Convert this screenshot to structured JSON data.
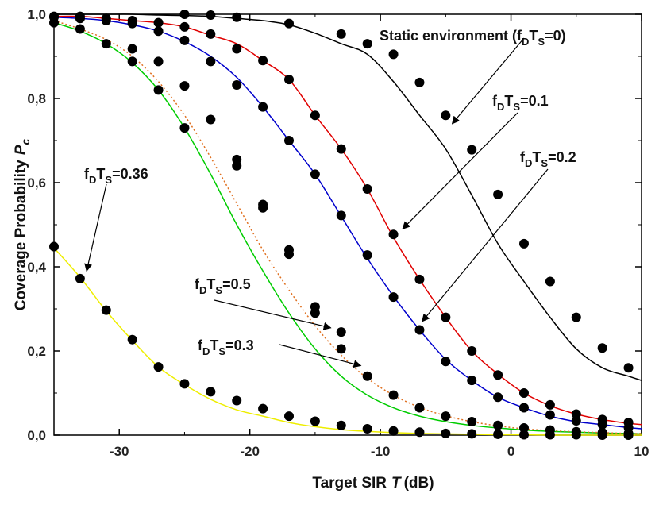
{
  "chart_data": {
    "type": "line",
    "title": "",
    "xlabel": "Target SIR",
    "xlabel_var": "T",
    "xlabel_unit": "(dB)",
    "ylabel": "Coverage Probability",
    "ylabel_var": "P",
    "ylabel_var_sub": "c",
    "xlim": [
      -35,
      10
    ],
    "ylim": [
      0.0,
      1.0
    ],
    "x_ticks": [
      -30,
      -20,
      -10,
      0,
      10
    ],
    "x_tick_labels": [
      "-30",
      "-20",
      "-10",
      "0",
      "10"
    ],
    "y_ticks": [
      0.0,
      0.2,
      0.4,
      0.6,
      0.8,
      1.0
    ],
    "y_tick_labels": [
      "0,0",
      "0,2",
      "0,4",
      "0,6",
      "0,8",
      "1,0"
    ],
    "grid": false,
    "legend": "none",
    "series": [
      {
        "color": "#000000",
        "dash": false,
        "x": [
          -35,
          -33,
          -31,
          -29,
          -27,
          -25,
          -23,
          -21,
          -19,
          -17,
          -15,
          -13,
          -11,
          -9,
          -7,
          -5,
          -3,
          -1,
          1,
          3,
          5,
          7,
          9,
          10
        ],
        "y": [
          1.0,
          1.0,
          1.0,
          1.0,
          0.998,
          0.997,
          0.995,
          0.99,
          0.985,
          0.975,
          0.955,
          0.93,
          0.905,
          0.84,
          0.76,
          0.68,
          0.57,
          0.455,
          0.365,
          0.28,
          0.205,
          0.16,
          0.14,
          0.13
        ],
        "markers_x": [
          -25,
          -23,
          -21,
          -17,
          -13,
          -11,
          -9,
          -7,
          -5,
          -3,
          -1,
          1,
          3,
          5,
          7,
          9
        ],
        "markers_y": [
          1.0,
          0.998,
          0.993,
          0.978,
          0.953,
          0.93,
          0.905,
          0.838,
          0.76,
          0.678,
          0.572,
          0.455,
          0.365,
          0.28,
          0.207,
          0.16
        ]
      },
      {
        "color": "#e00000",
        "dash": false,
        "x": [
          -35,
          -33,
          -31,
          -29,
          -27,
          -25,
          -23,
          -21,
          -19,
          -17,
          -15,
          -13,
          -11,
          -9,
          -7,
          -5,
          -3,
          -1,
          1,
          3,
          5,
          7,
          9,
          10
        ],
        "y": [
          0.995,
          0.995,
          0.99,
          0.985,
          0.98,
          0.97,
          0.95,
          0.93,
          0.89,
          0.845,
          0.76,
          0.68,
          0.585,
          0.47,
          0.37,
          0.28,
          0.2,
          0.145,
          0.1,
          0.07,
          0.05,
          0.037,
          0.028,
          0.025
        ],
        "markers_x": [
          -35,
          -33,
          -31,
          -29,
          -27,
          -25,
          -23,
          -21,
          -19,
          -17,
          -15,
          -13,
          -11,
          -9,
          -7,
          -5,
          -3,
          -1,
          1,
          3,
          5,
          7,
          9
        ],
        "markers_y": [
          0.995,
          0.995,
          0.99,
          0.985,
          0.98,
          0.97,
          0.953,
          0.918,
          0.89,
          0.845,
          0.76,
          0.68,
          0.585,
          0.477,
          0.37,
          0.28,
          0.2,
          0.143,
          0.1,
          0.072,
          0.05,
          0.037,
          0.03
        ]
      },
      {
        "color": "#0000cc",
        "dash": false,
        "x": [
          -35,
          -33,
          -31,
          -29,
          -27,
          -25,
          -23,
          -21,
          -19,
          -17,
          -15,
          -13,
          -11,
          -9,
          -7,
          -5,
          -3,
          -1,
          1,
          3,
          5,
          7,
          9,
          10
        ],
        "y": [
          0.993,
          0.99,
          0.985,
          0.975,
          0.96,
          0.935,
          0.9,
          0.85,
          0.78,
          0.7,
          0.62,
          0.52,
          0.42,
          0.33,
          0.25,
          0.18,
          0.13,
          0.09,
          0.065,
          0.045,
          0.032,
          0.025,
          0.018,
          0.015
        ],
        "markers_x": [
          -35,
          -33,
          -31,
          -29,
          -27,
          -25,
          -23,
          -21,
          -19,
          -17,
          -15,
          -13,
          -11,
          -9,
          -7,
          -5,
          -3,
          -1,
          1,
          3,
          5,
          7,
          9
        ],
        "markers_y": [
          0.993,
          0.99,
          0.985,
          0.978,
          0.96,
          0.938,
          0.888,
          0.832,
          0.78,
          0.7,
          0.62,
          0.522,
          0.428,
          0.328,
          0.25,
          0.175,
          0.13,
          0.09,
          0.065,
          0.048,
          0.034,
          0.025,
          0.018
        ]
      },
      {
        "color": "#00cc00",
        "dash": false,
        "x": [
          -35,
          -33,
          -31,
          -29,
          -27,
          -25,
          -23,
          -21,
          -19,
          -17,
          -15,
          -13,
          -11,
          -9,
          -7,
          -5,
          -3,
          -1,
          1,
          3,
          5,
          7,
          9,
          10
        ],
        "y": [
          0.98,
          0.96,
          0.93,
          0.885,
          0.82,
          0.73,
          0.62,
          0.5,
          0.39,
          0.29,
          0.205,
          0.14,
          0.095,
          0.065,
          0.045,
          0.032,
          0.023,
          0.017,
          0.012,
          0.009,
          0.007,
          0.005,
          0.004,
          0.003
        ],
        "markers_x": [
          -35,
          -31,
          -29,
          -27,
          -25,
          -23,
          -21,
          -19,
          -17,
          -15,
          -13,
          -11,
          -9,
          -7,
          -5,
          -3,
          -1,
          1,
          3,
          5,
          7,
          9
        ],
        "markers_y": [
          0.98,
          0.93,
          0.888,
          0.82,
          0.73,
          0.75,
          0.64,
          0.54,
          0.43,
          0.29,
          0.205,
          0.14,
          0.095,
          0.065,
          0.045,
          0.032,
          0.023,
          0.017,
          0.012,
          0.008,
          0.006,
          0.004
        ]
      },
      {
        "color": "#e07020",
        "dash": true,
        "x": [
          -35,
          -33,
          -31,
          -29,
          -27,
          -25,
          -23,
          -21,
          -19,
          -17,
          -15,
          -13,
          -11,
          -9,
          -7,
          -5,
          -3,
          -1,
          1,
          3,
          5,
          7,
          9,
          10
        ],
        "y": [
          0.985,
          0.965,
          0.94,
          0.9,
          0.84,
          0.76,
          0.66,
          0.55,
          0.44,
          0.345,
          0.26,
          0.19,
          0.135,
          0.095,
          0.066,
          0.046,
          0.032,
          0.022,
          0.015,
          0.011,
          0.008,
          0.006,
          0.004,
          0.004
        ],
        "markers_x": [
          -33,
          -29,
          -27,
          -25,
          -21,
          -19,
          -17,
          -15,
          -13
        ],
        "markers_y": [
          0.965,
          0.918,
          0.888,
          0.83,
          0.655,
          0.548,
          0.44,
          0.305,
          0.245
        ]
      },
      {
        "color": "#eeee00",
        "dash": false,
        "x": [
          -35,
          -33,
          -31,
          -29,
          -27,
          -25,
          -23,
          -21,
          -19,
          -17,
          -15,
          -13,
          -11,
          -9,
          -7,
          -5,
          -3,
          -1,
          1,
          3,
          5,
          7,
          9,
          10
        ],
        "y": [
          0.445,
          0.375,
          0.295,
          0.225,
          0.162,
          0.12,
          0.085,
          0.06,
          0.045,
          0.03,
          0.02,
          0.013,
          0.009,
          0.006,
          0.004,
          0.003,
          0.002,
          0.001,
          0.001,
          0.0,
          0.0,
          0.0,
          0.0,
          0.0
        ],
        "markers_x": [
          -35,
          -33,
          -31,
          -29,
          -27,
          -25,
          -23,
          -21,
          -19,
          -17,
          -15,
          -13,
          -11,
          -9,
          -7,
          -5,
          -3,
          -1,
          1,
          3,
          5,
          7,
          9
        ],
        "markers_y": [
          0.448,
          0.372,
          0.297,
          0.227,
          0.162,
          0.122,
          0.103,
          0.082,
          0.063,
          0.045,
          0.033,
          0.023,
          0.015,
          0.01,
          0.007,
          0.004,
          0.003,
          0.002,
          0.001,
          0.001,
          0.001,
          0.0,
          0.0
        ]
      }
    ],
    "annotations": [
      {
        "parts": [
          {
            "t": "Static environment (f"
          },
          {
            "t": "D",
            "sub": true
          },
          {
            "t": "T"
          },
          {
            "t": "S",
            "sub": true
          },
          {
            "t": "=0)"
          }
        ],
        "arrow_to_x": -4.5,
        "arrow_to_y": 0.74
      },
      {
        "parts": [
          {
            "t": "f"
          },
          {
            "t": "D",
            "sub": true
          },
          {
            "t": "T"
          },
          {
            "t": "S",
            "sub": true
          },
          {
            "t": "=0.1"
          }
        ],
        "arrow_to_x": -8.3,
        "arrow_to_y": 0.49
      },
      {
        "parts": [
          {
            "t": "f"
          },
          {
            "t": "D",
            "sub": true
          },
          {
            "t": "T"
          },
          {
            "t": "S",
            "sub": true
          },
          {
            "t": "=0.2"
          }
        ],
        "arrow_to_x": -6.8,
        "arrow_to_y": 0.27
      },
      {
        "parts": [
          {
            "t": "f"
          },
          {
            "t": "D",
            "sub": true
          },
          {
            "t": "T"
          },
          {
            "t": "S",
            "sub": true
          },
          {
            "t": "=0.36"
          }
        ],
        "arrow_to_x": -32.5,
        "arrow_to_y": 0.39
      },
      {
        "parts": [
          {
            "t": "f"
          },
          {
            "t": "D",
            "sub": true
          },
          {
            "t": "T"
          },
          {
            "t": "S",
            "sub": true
          },
          {
            "t": "=0.5"
          }
        ],
        "arrow_to_x": -13.8,
        "arrow_to_y": 0.255
      },
      {
        "parts": [
          {
            "t": "f"
          },
          {
            "t": "D",
            "sub": true
          },
          {
            "t": "T"
          },
          {
            "t": "S",
            "sub": true
          },
          {
            "t": "=0.3"
          }
        ],
        "arrow_to_x": -11.5,
        "arrow_to_y": 0.165
      }
    ]
  }
}
